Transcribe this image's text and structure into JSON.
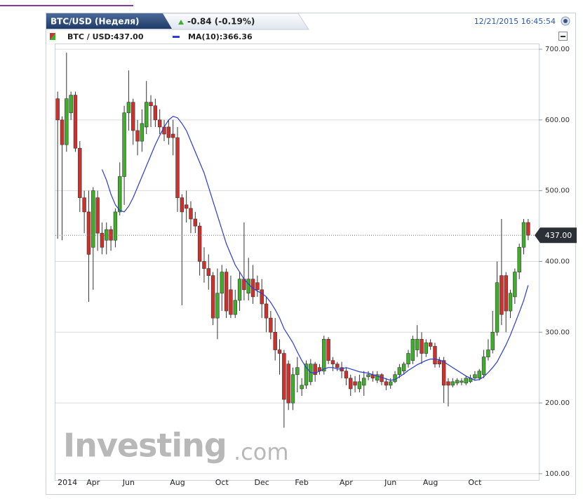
{
  "header": {
    "title": "BTC/USD (Неделя)",
    "change": "-0.84 (-0.19%)",
    "timestamp": "12/21/2015 16:45:54"
  },
  "watermark": "Investing",
  "watermark_suffix": ".com",
  "chart_data": {
    "type": "candlestick",
    "categories": [
      "2014",
      null,
      null,
      null,
      null,
      null,
      null,
      null,
      "Apr",
      null,
      null,
      null,
      null,
      null,
      null,
      null,
      "Jun",
      null,
      null,
      null,
      null,
      null,
      null,
      null,
      null,
      null,
      null,
      "Aug",
      null,
      null,
      null,
      null,
      null,
      null,
      null,
      null,
      null,
      "Oct",
      null,
      null,
      null,
      null,
      null,
      null,
      null,
      null,
      "Dec",
      null,
      null,
      null,
      null,
      null,
      null,
      null,
      null,
      "Feb",
      null,
      null,
      null,
      null,
      null,
      null,
      null,
      null,
      null,
      "Apr",
      null,
      null,
      null,
      null,
      null,
      null,
      null,
      null,
      null,
      "Jun",
      null,
      null,
      null,
      null,
      null,
      null,
      null,
      null,
      "Aug",
      null,
      null,
      null,
      null,
      null,
      null,
      null,
      null,
      null,
      "Oct",
      null,
      null,
      null,
      null,
      null,
      null,
      null,
      null,
      null,
      null,
      null,
      null
    ],
    "series": [
      {
        "name": "BTC / USD:437.00",
        "up_color": "#3fae2a",
        "down_color": "#d0302c",
        "open": [
          630,
          600,
          565,
          610,
          635,
          560,
          490,
          470,
          420,
          490,
          440,
          430,
          445,
          430,
          470,
          520,
          610,
          625,
          585,
          570,
          590,
          625,
          620,
          600,
          590,
          590,
          580,
          575,
          490,
          480,
          475,
          460,
          450,
          400,
          390,
          380,
          320,
          355,
          385,
          360,
          325,
          345,
          375,
          355,
          375,
          370,
          360,
          340,
          320,
          300,
          275,
          270,
          255,
          200,
          240,
          220,
          225,
          230,
          255,
          250,
          245,
          290,
          260,
          255,
          250,
          245,
          235,
          230,
          220,
          225,
          237,
          240,
          232,
          240,
          230,
          225,
          230,
          240,
          245,
          255,
          260,
          275,
          290,
          270,
          285,
          280,
          260,
          260,
          230,
          225,
          228,
          229,
          228,
          230,
          235,
          235,
          240,
          265,
          275,
          300,
          380,
          380,
          330,
          350,
          385,
          420,
          455
        ],
        "high": [
          640,
          605,
          695,
          640,
          640,
          570,
          500,
          500,
          505,
          500,
          455,
          455,
          450,
          475,
          540,
          620,
          670,
          630,
          600,
          615,
          655,
          635,
          630,
          615,
          600,
          600,
          600,
          590,
          495,
          500,
          485,
          470,
          455,
          420,
          410,
          385,
          390,
          395,
          390,
          380,
          360,
          385,
          455,
          405,
          395,
          380,
          375,
          350,
          330,
          320,
          290,
          275,
          260,
          250,
          265,
          235,
          260,
          262,
          258,
          255,
          295,
          293,
          265,
          258,
          258,
          250,
          240,
          238,
          240,
          245,
          245,
          245,
          245,
          242,
          235,
          235,
          245,
          255,
          258,
          275,
          295,
          310,
          300,
          290,
          290,
          285,
          265,
          265,
          235,
          235,
          235,
          235,
          238,
          240,
          245,
          248,
          275,
          290,
          330,
          400,
          460,
          385,
          360,
          390,
          425,
          460,
          460
        ],
        "low": [
          432,
          430,
          555,
          600,
          555,
          470,
          440,
          343,
          360,
          415,
          410,
          410,
          415,
          420,
          465,
          480,
          585,
          565,
          550,
          555,
          580,
          590,
          590,
          580,
          570,
          565,
          550,
          470,
          338,
          455,
          440,
          440,
          380,
          370,
          360,
          310,
          290,
          330,
          320,
          320,
          320,
          330,
          345,
          345,
          340,
          350,
          320,
          300,
          290,
          260,
          240,
          165,
          190,
          190,
          215,
          210,
          220,
          225,
          230,
          240,
          240,
          255,
          245,
          245,
          235,
          225,
          210,
          215,
          215,
          210,
          232,
          230,
          228,
          225,
          218,
          220,
          228,
          235,
          240,
          250,
          255,
          265,
          255,
          265,
          275,
          250,
          250,
          200,
          195,
          222,
          225,
          225,
          225,
          228,
          232,
          232,
          235,
          260,
          270,
          295,
          310,
          300,
          320,
          340,
          375,
          410,
          430
        ],
        "close": [
          600,
          565,
          630,
          635,
          560,
          490,
          470,
          410,
          500,
          440,
          420,
          445,
          430,
          470,
          520,
          610,
          625,
          585,
          570,
          595,
          625,
          620,
          600,
          590,
          580,
          575,
          575,
          490,
          470,
          475,
          460,
          450,
          400,
          390,
          380,
          320,
          355,
          385,
          330,
          325,
          345,
          375,
          360,
          375,
          350,
          360,
          340,
          320,
          300,
          275,
          270,
          205,
          200,
          240,
          250,
          225,
          255,
          255,
          240,
          245,
          290,
          260,
          255,
          250,
          245,
          235,
          220,
          225,
          230,
          235,
          240,
          235,
          240,
          230,
          225,
          230,
          240,
          250,
          255,
          270,
          290,
          290,
          270,
          285,
          280,
          255,
          255,
          225,
          225,
          230,
          232,
          231,
          235,
          235,
          240,
          245,
          265,
          275,
          300,
          370,
          325,
          330,
          355,
          385,
          420,
          455,
          437
        ]
      },
      {
        "name": "MA(10):366.36",
        "color": "#2a3bd6",
        "values": [
          null,
          null,
          null,
          null,
          null,
          null,
          null,
          null,
          null,
          null,
          530,
          515,
          495,
          480,
          472,
          470,
          478,
          490,
          505,
          520,
          535,
          550,
          565,
          578,
          590,
          600,
          605,
          603,
          595,
          585,
          570,
          555,
          540,
          525,
          505,
          485,
          465,
          445,
          425,
          410,
          395,
          385,
          375,
          368,
          362,
          358,
          355,
          350,
          342,
          332,
          320,
          305,
          295,
          285,
          272,
          260,
          250,
          243,
          242,
          245,
          248,
          250,
          250,
          248,
          248,
          250,
          248,
          246,
          244,
          243,
          242,
          240,
          238,
          236,
          234,
          232,
          233,
          237,
          241,
          246,
          250,
          254,
          257,
          260,
          262,
          262,
          261,
          258,
          254,
          250,
          246,
          242,
          238,
          235,
          232,
          233,
          237,
          243,
          250,
          258,
          270,
          282,
          296,
          312,
          328,
          345,
          366.36
        ]
      }
    ],
    "ylim": [
      90,
      708
    ],
    "yticks": [
      {
        "value": 100,
        "label": "100.00"
      },
      {
        "value": 200,
        "label": "200.00"
      },
      {
        "value": 300,
        "label": "300.00"
      },
      {
        "value": 400,
        "label": "400.00"
      },
      {
        "value": 500,
        "label": "500.00"
      },
      {
        "value": 600,
        "label": "600.00"
      },
      {
        "value": 700,
        "label": "700.00"
      }
    ],
    "grid": true,
    "last_price": 437,
    "last_price_label": "437.00"
  }
}
